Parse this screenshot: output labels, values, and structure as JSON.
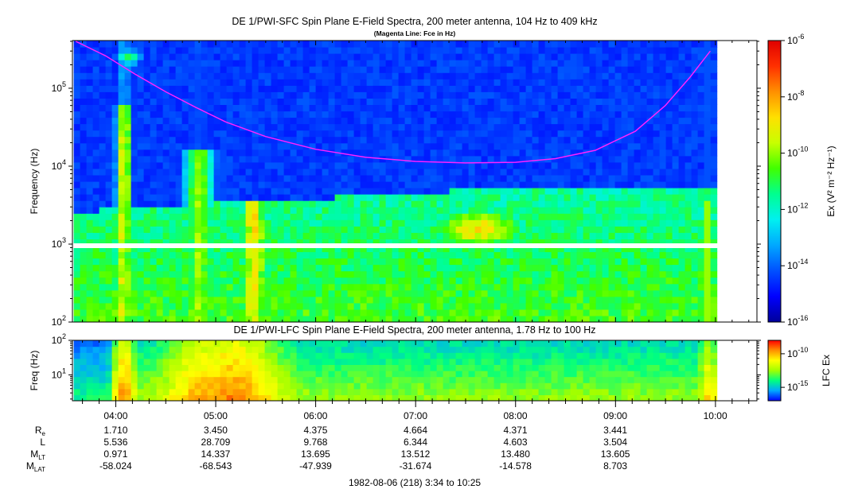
{
  "chart_data": [
    {
      "type": "heatmap",
      "title": "DE 1/PWI-SFC  Spin Plane E-Field Spectra, 200 meter antenna, 104 Hz to 409 kHz",
      "subtitle": "(Magenta Line: Fce in Hz)",
      "ylabel": "Frequency (Hz)",
      "yscale": "log",
      "ylim": [
        100,
        409000
      ],
      "y_ticks": [
        {
          "value": 100,
          "base": "10",
          "exp": "2"
        },
        {
          "value": 1000,
          "base": "10",
          "exp": "3"
        },
        {
          "value": 10000,
          "base": "10",
          "exp": "4"
        },
        {
          "value": 100000,
          "base": "10",
          "exp": "5"
        }
      ],
      "x_range_hours": [
        3.567,
        10.417
      ],
      "data_end_hours": 10.0,
      "colorbar": {
        "label": "Ex (V² m⁻² Hz⁻¹)",
        "scale": "log",
        "range": [
          1e-16,
          1e-06
        ],
        "ticks": [
          {
            "value": 1e-06,
            "base": "10",
            "exp": "-6"
          },
          {
            "value": 1e-08,
            "base": "10",
            "exp": "-8"
          },
          {
            "value": 1e-10,
            "base": "10",
            "exp": "-10"
          },
          {
            "value": 1e-12,
            "base": "10",
            "exp": "-12"
          },
          {
            "value": 1e-14,
            "base": "10",
            "exp": "-14"
          },
          {
            "value": 1e-16,
            "base": "10",
            "exp": "-16"
          }
        ],
        "colors": [
          "#00009a",
          "#0000ff",
          "#0050ff",
          "#00a8ff",
          "#00f0f0",
          "#00ff90",
          "#40ff00",
          "#c8ff00",
          "#ffe000",
          "#ff9000",
          "#ff3000",
          "#e00000"
        ]
      },
      "series": [
        {
          "name": "Fce",
          "color": "#ff22ff",
          "x": [
            3.6,
            3.9,
            4.2,
            4.5,
            4.8,
            5.1,
            5.5,
            6.0,
            6.5,
            7.0,
            7.5,
            8.0,
            8.4,
            8.8,
            9.2,
            9.5,
            9.75,
            9.95
          ],
          "y": [
            400000,
            260000,
            150000,
            90000,
            57000,
            37000,
            24000,
            16500,
            13000,
            11500,
            11000,
            11200,
            12500,
            16000,
            28000,
            60000,
            140000,
            300000
          ]
        }
      ]
    },
    {
      "type": "heatmap",
      "title": "DE 1/PWI-LFC  Spin Plane E-Field Spectra, 200 meter antenna, 1.78 Hz to 100 Hz",
      "ylabel": "Freq (Hz)",
      "yscale": "log",
      "ylim": [
        1.78,
        100
      ],
      "y_ticks": [
        {
          "value": 10,
          "base": "10",
          "exp": "1"
        },
        {
          "value": 100,
          "base": "10",
          "exp": "2"
        }
      ],
      "colorbar": {
        "label": "LFC Ex",
        "scale": "log",
        "range": [
          1e-17,
          1e-08
        ],
        "ticks": [
          {
            "value": 1e-10,
            "base": "10",
            "exp": "-10"
          },
          {
            "value": 1e-15,
            "base": "10",
            "exp": "-15"
          }
        ],
        "colors": [
          "#0000ff",
          "#00a8ff",
          "#00ff80",
          "#a0ff00",
          "#ffff00",
          "#ff9000",
          "#ff0000"
        ]
      }
    }
  ],
  "x_axis": {
    "ticks": [
      {
        "value": 4,
        "label": "04:00"
      },
      {
        "value": 5,
        "label": "05:00"
      },
      {
        "value": 6,
        "label": "06:00"
      },
      {
        "value": 7,
        "label": "07:00"
      },
      {
        "value": 8,
        "label": "08:00"
      },
      {
        "value": 9,
        "label": "09:00"
      },
      {
        "value": 10,
        "label": "10:00"
      }
    ],
    "minor_step_hours": 0.1667
  },
  "ephemeris": {
    "rows": [
      {
        "label": "R",
        "sub": "e",
        "values": [
          "1.710",
          "3.450",
          "4.375",
          "4.664",
          "4.371",
          "3.441"
        ]
      },
      {
        "label": "L",
        "sub": "",
        "values": [
          "5.536",
          "28.709",
          "9.768",
          "6.344",
          "4.603",
          "3.504"
        ]
      },
      {
        "label": "M",
        "sub": "LT",
        "values": [
          "0.971",
          "14.337",
          "13.695",
          "13.512",
          "13.480",
          "13.605"
        ]
      },
      {
        "label": "M",
        "sub": "LAT",
        "values": [
          "-58.024",
          "-68.543",
          "-47.939",
          "-31.674",
          "-14.578",
          "8.703"
        ]
      }
    ]
  },
  "date_caption": "1982-08-06 (218) 3:34 to 10:25"
}
